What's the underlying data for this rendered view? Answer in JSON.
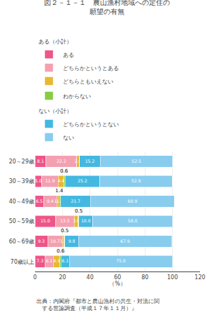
{
  "chart_data": {
    "type": "bar",
    "orientation": "horizontal",
    "stacked": true,
    "title": "図２－１－１　農山漁村地域への定住の\n願望の有無",
    "xlabel": "（%）",
    "categories": [
      "20～29歳",
      "30～39歳",
      "40～49歳",
      "50～59歳",
      "60～69歳",
      "70歳以上"
    ],
    "series": [
      {
        "name": "ある",
        "group": "ある（小計）",
        "color": "#EE5588",
        "values": [
          8.1,
          5.0,
          6.5,
          15.0,
          9.3,
          7.3
        ],
        "value_labels": [
          "8.1",
          "5.0",
          "6.5",
          "15.0",
          "9.3",
          "7.3"
        ]
      },
      {
        "name": "どちらかというとある",
        "group": "ある（小計）",
        "color": "#F4A0B0",
        "values": [
          22.2,
          11.9,
          9.4,
          13.5,
          10.7,
          6.1
        ],
        "value_labels": [
          "22.2",
          "11.9",
          "9.4",
          "13.5",
          "10.7",
          "6.1"
        ]
      },
      {
        "name": "どちらともいえない",
        "group": "ある（小計）",
        "color": "#E8B830",
        "values": [
          2.0,
          4.4,
          1.4,
          3.0,
          1.3,
          4.9
        ],
        "value_labels": [
          "2.0",
          "4.4",
          "1.4",
          "3.0",
          "1.3",
          "4.9"
        ]
      },
      {
        "name": "わからない",
        "color": "#88CC44",
        "values": [
          0.0,
          0.6,
          1.4,
          0.5,
          0.5,
          0.6
        ],
        "value_labels": [
          null,
          null,
          "1.4",
          null,
          null,
          null
        ]
      },
      {
        "name": "どちらかというとない",
        "group": "ない（小計）",
        "color": "#44B8E0",
        "values": [
          15.2,
          25.2,
          21.7,
          10.0,
          9.8,
          6.1
        ],
        "value_labels": [
          "15.2",
          "25.2",
          "21.7",
          "10.0",
          "9.8",
          "6.1"
        ]
      },
      {
        "name": "ない",
        "group": "ない（小計）",
        "color": "#88CCEE",
        "values": [
          52.5,
          52.8,
          60.9,
          58.0,
          67.9,
          75.0
        ],
        "value_labels": [
          "52.5",
          "52.8",
          "60.9",
          "58.0",
          "67.9",
          "75.0"
        ]
      }
    ],
    "annotations": [
      {
        "series": "わからない",
        "category": "30～39歳",
        "text": "0.6"
      },
      {
        "series": "わからない",
        "category": "40～49歳",
        "text": "1.4"
      },
      {
        "series": "わからない",
        "category": "50～59歳",
        "text": "0.5"
      },
      {
        "series": "わからない",
        "category": "60～69歳",
        "text": "0.5"
      },
      {
        "series": "わからない",
        "category": "70歳以上",
        "text": "0.6"
      }
    ],
    "caption": "出典：内閣府『都市と農山漁村の共生・対流に関\n　する世論調査（平成１７年１１月）』",
    "xlim": [
      0,
      120
    ],
    "xticks": [
      0,
      20,
      40,
      60,
      80,
      100,
      120
    ],
    "grid": true,
    "legend": "top"
  }
}
